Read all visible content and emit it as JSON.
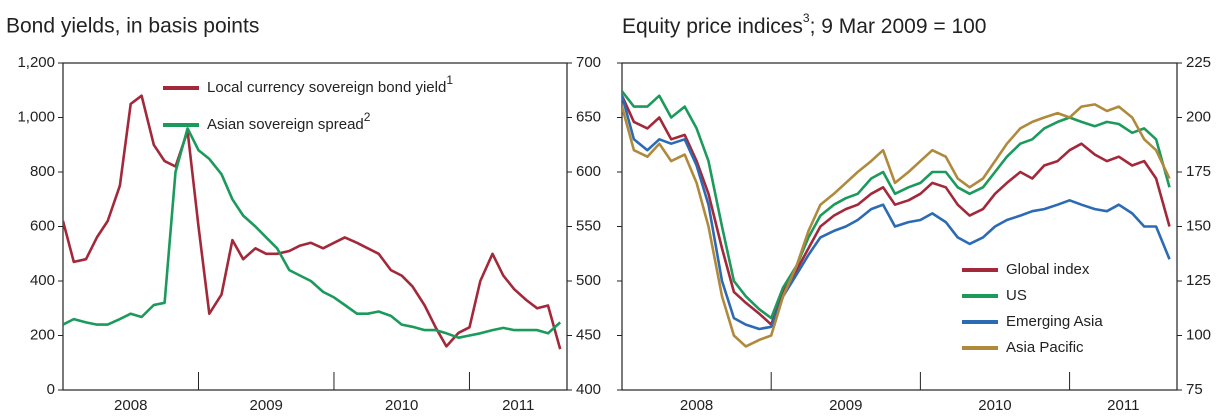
{
  "chart_data": [
    {
      "type": "line",
      "title": "Bond yields, in basis points",
      "legend": "upper center",
      "grid": false,
      "x": [
        2008.0,
        2008.08,
        2008.17,
        2008.25,
        2008.33,
        2008.42,
        2008.5,
        2008.58,
        2008.67,
        2008.75,
        2008.83,
        2008.92,
        2009.0,
        2009.08,
        2009.17,
        2009.25,
        2009.33,
        2009.42,
        2009.5,
        2009.58,
        2009.67,
        2009.75,
        2009.83,
        2009.92,
        2010.0,
        2010.08,
        2010.17,
        2010.25,
        2010.33,
        2010.42,
        2010.5,
        2010.58,
        2010.67,
        2010.75,
        2010.83,
        2010.92,
        2011.0,
        2011.08,
        2011.17,
        2011.25,
        2011.33,
        2011.42,
        2011.5,
        2011.58,
        2011.67
      ],
      "xlim": [
        2008,
        2011.72
      ],
      "xticks": [
        2008,
        2009,
        2010,
        2011
      ],
      "ylim": [
        0,
        1200
      ],
      "yticks": [
        0,
        200,
        400,
        600,
        800,
        {
          "value": 1000,
          "label": "1,000"
        },
        {
          "value": 1200,
          "label": "1,200"
        }
      ],
      "y2lim": [
        400,
        700
      ],
      "y2ticks": [
        400,
        450,
        500,
        550,
        600,
        650,
        700
      ],
      "series": [
        {
          "name": "Local currency sovereign bond yield",
          "footnote": "1",
          "color": "#a3283a",
          "values": [
            620,
            470,
            480,
            560,
            620,
            750,
            1050,
            1080,
            900,
            840,
            820,
            950,
            600,
            280,
            350,
            550,
            480,
            520,
            500,
            500,
            510,
            530,
            540,
            520,
            540,
            560,
            540,
            520,
            500,
            440,
            420,
            380,
            310,
            230,
            160,
            210,
            230,
            400,
            500,
            420,
            370,
            330,
            300,
            310,
            150
          ]
        },
        {
          "name": "Asian sovereign spread",
          "footnote": "2",
          "color": "#1b9a5c",
          "axis": "y2",
          "values": [
            460,
            465,
            462,
            460,
            460,
            465,
            470,
            467,
            478,
            480,
            600,
            640,
            620,
            612,
            598,
            575,
            560,
            550,
            540,
            530,
            510,
            505,
            500,
            490,
            485,
            478,
            470,
            470,
            472,
            468,
            460,
            458,
            455,
            455,
            452,
            448,
            450,
            452,
            455,
            457,
            455,
            455,
            455,
            452,
            462
          ]
        }
      ]
    },
    {
      "type": "line",
      "title": "Equity price indices",
      "title_footnote": "3",
      "title_cont": "; 9 Mar 2009 = 100",
      "legend": "lower right",
      "grid": false,
      "x": [
        2008.0,
        2008.08,
        2008.17,
        2008.25,
        2008.33,
        2008.42,
        2008.5,
        2008.58,
        2008.67,
        2008.75,
        2008.83,
        2008.92,
        2009.0,
        2009.08,
        2009.17,
        2009.25,
        2009.33,
        2009.42,
        2009.5,
        2009.58,
        2009.67,
        2009.75,
        2009.83,
        2009.92,
        2010.0,
        2010.08,
        2010.17,
        2010.25,
        2010.33,
        2010.42,
        2010.5,
        2010.58,
        2010.67,
        2010.75,
        2010.83,
        2010.92,
        2011.0,
        2011.08,
        2011.17,
        2011.25,
        2011.33,
        2011.42,
        2011.5,
        2011.58,
        2011.67
      ],
      "xlim": [
        2008,
        2011.72
      ],
      "xticks": [
        2008,
        2009,
        2010,
        2011
      ],
      "ylim": [
        75,
        225
      ],
      "yticks": [
        75,
        100,
        125,
        150,
        175,
        200,
        225
      ],
      "series": [
        {
          "name": "Global index",
          "color": "#a3283a",
          "values": [
            210,
            198,
            195,
            200,
            190,
            192,
            180,
            165,
            140,
            120,
            115,
            110,
            105,
            120,
            130,
            140,
            150,
            155,
            158,
            160,
            165,
            168,
            160,
            162,
            165,
            170,
            168,
            160,
            155,
            158,
            165,
            170,
            175,
            172,
            178,
            180,
            185,
            188,
            183,
            180,
            182,
            178,
            180,
            172,
            150
          ]
        },
        {
          "name": "US",
          "color": "#1b9a5c",
          "values": [
            212,
            205,
            205,
            210,
            200,
            205,
            195,
            180,
            150,
            125,
            118,
            112,
            108,
            122,
            132,
            145,
            155,
            160,
            163,
            165,
            172,
            175,
            165,
            168,
            170,
            175,
            175,
            168,
            165,
            168,
            175,
            182,
            188,
            190,
            195,
            198,
            200,
            198,
            196,
            198,
            197,
            193,
            195,
            190,
            168
          ]
        },
        {
          "name": "Emerging Asia",
          "color": "#2c6bb4",
          "values": [
            210,
            190,
            185,
            190,
            188,
            190,
            178,
            160,
            125,
            108,
            105,
            103,
            104,
            118,
            128,
            137,
            145,
            148,
            150,
            153,
            158,
            160,
            150,
            152,
            153,
            156,
            152,
            145,
            142,
            145,
            150,
            153,
            155,
            157,
            158,
            160,
            162,
            160,
            158,
            157,
            160,
            156,
            150,
            150,
            135
          ]
        },
        {
          "name": "Asia Pacific",
          "color": "#b08a3c",
          "values": [
            205,
            185,
            182,
            188,
            180,
            183,
            170,
            150,
            118,
            100,
            95,
            98,
            100,
            118,
            132,
            148,
            160,
            165,
            170,
            175,
            180,
            185,
            170,
            175,
            180,
            185,
            182,
            172,
            168,
            172,
            180,
            188,
            195,
            198,
            200,
            202,
            200,
            205,
            206,
            203,
            205,
            200,
            190,
            185,
            172
          ]
        }
      ]
    }
  ]
}
